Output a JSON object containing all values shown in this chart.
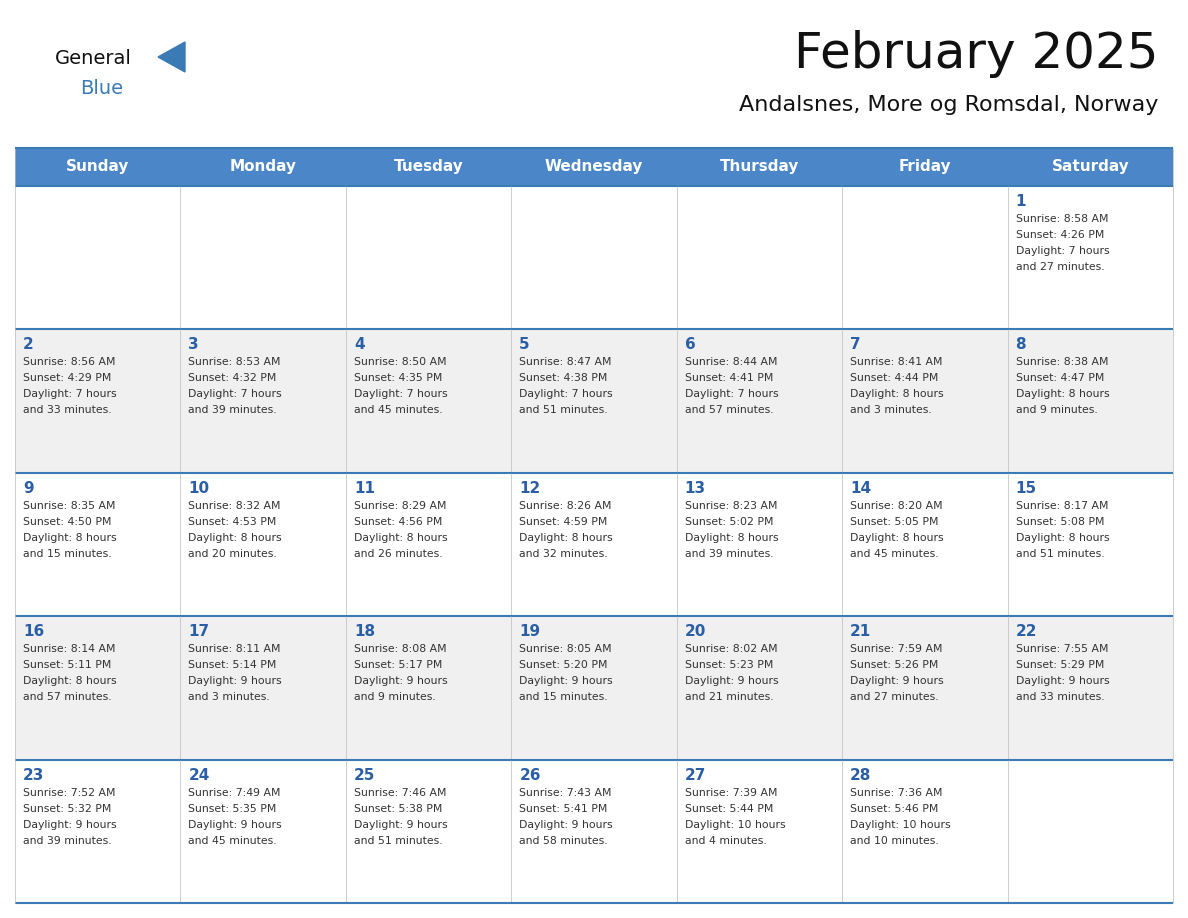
{
  "title": "February 2025",
  "subtitle": "Andalsnes, More og Romsdal, Norway",
  "header_color": "#4a86c8",
  "header_text_color": "#ffffff",
  "day_names": [
    "Sunday",
    "Monday",
    "Tuesday",
    "Wednesday",
    "Thursday",
    "Friday",
    "Saturday"
  ],
  "title_color": "#111111",
  "subtitle_color": "#111111",
  "number_color": "#2a5fa5",
  "info_color": "#333333",
  "border_color": "#3a7ab5",
  "row_colors": [
    "#ffffff",
    "#f0f0f0"
  ],
  "logo_general_color": "#111111",
  "logo_blue_color": "#3a7ab5",
  "weeks": [
    [
      {
        "day": null,
        "info": ""
      },
      {
        "day": null,
        "info": ""
      },
      {
        "day": null,
        "info": ""
      },
      {
        "day": null,
        "info": ""
      },
      {
        "day": null,
        "info": ""
      },
      {
        "day": null,
        "info": ""
      },
      {
        "day": 1,
        "info": "Sunrise: 8:58 AM\nSunset: 4:26 PM\nDaylight: 7 hours\nand 27 minutes."
      }
    ],
    [
      {
        "day": 2,
        "info": "Sunrise: 8:56 AM\nSunset: 4:29 PM\nDaylight: 7 hours\nand 33 minutes."
      },
      {
        "day": 3,
        "info": "Sunrise: 8:53 AM\nSunset: 4:32 PM\nDaylight: 7 hours\nand 39 minutes."
      },
      {
        "day": 4,
        "info": "Sunrise: 8:50 AM\nSunset: 4:35 PM\nDaylight: 7 hours\nand 45 minutes."
      },
      {
        "day": 5,
        "info": "Sunrise: 8:47 AM\nSunset: 4:38 PM\nDaylight: 7 hours\nand 51 minutes."
      },
      {
        "day": 6,
        "info": "Sunrise: 8:44 AM\nSunset: 4:41 PM\nDaylight: 7 hours\nand 57 minutes."
      },
      {
        "day": 7,
        "info": "Sunrise: 8:41 AM\nSunset: 4:44 PM\nDaylight: 8 hours\nand 3 minutes."
      },
      {
        "day": 8,
        "info": "Sunrise: 8:38 AM\nSunset: 4:47 PM\nDaylight: 8 hours\nand 9 minutes."
      }
    ],
    [
      {
        "day": 9,
        "info": "Sunrise: 8:35 AM\nSunset: 4:50 PM\nDaylight: 8 hours\nand 15 minutes."
      },
      {
        "day": 10,
        "info": "Sunrise: 8:32 AM\nSunset: 4:53 PM\nDaylight: 8 hours\nand 20 minutes."
      },
      {
        "day": 11,
        "info": "Sunrise: 8:29 AM\nSunset: 4:56 PM\nDaylight: 8 hours\nand 26 minutes."
      },
      {
        "day": 12,
        "info": "Sunrise: 8:26 AM\nSunset: 4:59 PM\nDaylight: 8 hours\nand 32 minutes."
      },
      {
        "day": 13,
        "info": "Sunrise: 8:23 AM\nSunset: 5:02 PM\nDaylight: 8 hours\nand 39 minutes."
      },
      {
        "day": 14,
        "info": "Sunrise: 8:20 AM\nSunset: 5:05 PM\nDaylight: 8 hours\nand 45 minutes."
      },
      {
        "day": 15,
        "info": "Sunrise: 8:17 AM\nSunset: 5:08 PM\nDaylight: 8 hours\nand 51 minutes."
      }
    ],
    [
      {
        "day": 16,
        "info": "Sunrise: 8:14 AM\nSunset: 5:11 PM\nDaylight: 8 hours\nand 57 minutes."
      },
      {
        "day": 17,
        "info": "Sunrise: 8:11 AM\nSunset: 5:14 PM\nDaylight: 9 hours\nand 3 minutes."
      },
      {
        "day": 18,
        "info": "Sunrise: 8:08 AM\nSunset: 5:17 PM\nDaylight: 9 hours\nand 9 minutes."
      },
      {
        "day": 19,
        "info": "Sunrise: 8:05 AM\nSunset: 5:20 PM\nDaylight: 9 hours\nand 15 minutes."
      },
      {
        "day": 20,
        "info": "Sunrise: 8:02 AM\nSunset: 5:23 PM\nDaylight: 9 hours\nand 21 minutes."
      },
      {
        "day": 21,
        "info": "Sunrise: 7:59 AM\nSunset: 5:26 PM\nDaylight: 9 hours\nand 27 minutes."
      },
      {
        "day": 22,
        "info": "Sunrise: 7:55 AM\nSunset: 5:29 PM\nDaylight: 9 hours\nand 33 minutes."
      }
    ],
    [
      {
        "day": 23,
        "info": "Sunrise: 7:52 AM\nSunset: 5:32 PM\nDaylight: 9 hours\nand 39 minutes."
      },
      {
        "day": 24,
        "info": "Sunrise: 7:49 AM\nSunset: 5:35 PM\nDaylight: 9 hours\nand 45 minutes."
      },
      {
        "day": 25,
        "info": "Sunrise: 7:46 AM\nSunset: 5:38 PM\nDaylight: 9 hours\nand 51 minutes."
      },
      {
        "day": 26,
        "info": "Sunrise: 7:43 AM\nSunset: 5:41 PM\nDaylight: 9 hours\nand 58 minutes."
      },
      {
        "day": 27,
        "info": "Sunrise: 7:39 AM\nSunset: 5:44 PM\nDaylight: 10 hours\nand 4 minutes."
      },
      {
        "day": 28,
        "info": "Sunrise: 7:36 AM\nSunset: 5:46 PM\nDaylight: 10 hours\nand 10 minutes."
      },
      {
        "day": null,
        "info": ""
      }
    ]
  ]
}
